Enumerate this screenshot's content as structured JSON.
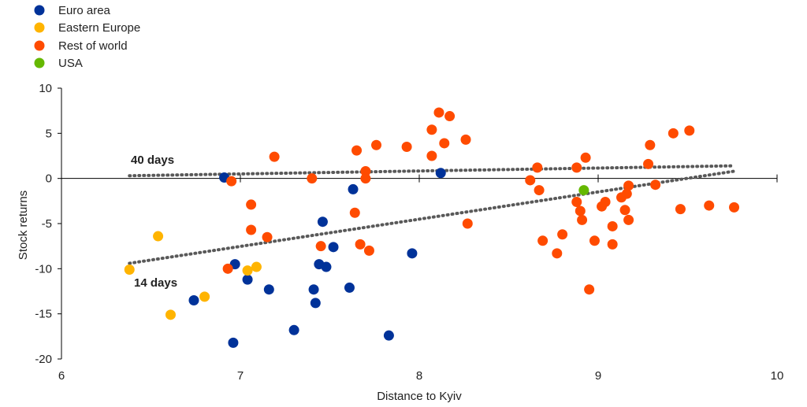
{
  "chart_data": {
    "type": "scatter",
    "xlabel": "Distance to Kyiv",
    "ylabel": "Stock returns",
    "xlim": [
      6,
      10
    ],
    "ylim": [
      -20,
      10
    ],
    "xticks": [
      6,
      7,
      8,
      9,
      10
    ],
    "yticks": [
      -20,
      -15,
      -10,
      -5,
      0,
      5,
      10
    ],
    "legend_position": "top-left",
    "series": [
      {
        "name": "Euro area",
        "color": "#003299",
        "points": [
          [
            6.91,
            0.1
          ],
          [
            6.97,
            -9.5
          ],
          [
            6.96,
            -18.2
          ],
          [
            7.04,
            -11.2
          ],
          [
            6.74,
            -13.5
          ],
          [
            7.16,
            -12.3
          ],
          [
            7.3,
            -16.8
          ],
          [
            7.41,
            -12.3
          ],
          [
            7.42,
            -13.8
          ],
          [
            7.44,
            -9.5
          ],
          [
            7.46,
            -4.8
          ],
          [
            7.48,
            -9.8
          ],
          [
            7.52,
            -7.6
          ],
          [
            7.61,
            -12.1
          ],
          [
            7.63,
            -1.2
          ],
          [
            7.83,
            -17.4
          ],
          [
            7.96,
            -8.3
          ],
          [
            8.12,
            0.6
          ]
        ]
      },
      {
        "name": "Eastern Europe",
        "color": "#FFB400",
        "points": [
          [
            6.38,
            -10.1
          ],
          [
            6.54,
            -6.4
          ],
          [
            6.61,
            -15.1
          ],
          [
            6.8,
            -13.1
          ],
          [
            7.04,
            -10.2
          ],
          [
            7.09,
            -9.8
          ]
        ]
      },
      {
        "name": "Rest of world",
        "color": "#FF4B00",
        "points": [
          [
            6.93,
            -10.0
          ],
          [
            6.95,
            -0.3
          ],
          [
            7.06,
            -2.9
          ],
          [
            7.06,
            -5.7
          ],
          [
            7.15,
            -6.5
          ],
          [
            7.19,
            2.4
          ],
          [
            7.4,
            0.0
          ],
          [
            7.45,
            -7.5
          ],
          [
            7.64,
            -3.8
          ],
          [
            7.65,
            3.1
          ],
          [
            7.67,
            -7.3
          ],
          [
            7.7,
            0.8
          ],
          [
            7.7,
            0.0
          ],
          [
            7.72,
            -8.0
          ],
          [
            7.76,
            3.7
          ],
          [
            7.93,
            3.5
          ],
          [
            8.07,
            5.4
          ],
          [
            8.07,
            2.5
          ],
          [
            8.11,
            7.3
          ],
          [
            8.14,
            3.9
          ],
          [
            8.17,
            6.9
          ],
          [
            8.26,
            4.3
          ],
          [
            8.27,
            -5.0
          ],
          [
            8.62,
            -0.2
          ],
          [
            8.66,
            1.2
          ],
          [
            8.67,
            -1.3
          ],
          [
            8.69,
            -6.9
          ],
          [
            8.77,
            -8.3
          ],
          [
            8.8,
            -6.2
          ],
          [
            8.88,
            1.2
          ],
          [
            8.88,
            -2.6
          ],
          [
            8.9,
            -3.6
          ],
          [
            8.91,
            -4.6
          ],
          [
            8.93,
            2.3
          ],
          [
            8.95,
            -12.3
          ],
          [
            8.98,
            -6.9
          ],
          [
            9.02,
            -3.1
          ],
          [
            9.04,
            -2.6
          ],
          [
            9.08,
            -5.3
          ],
          [
            9.08,
            -7.3
          ],
          [
            9.13,
            -2.1
          ],
          [
            9.15,
            -3.5
          ],
          [
            9.16,
            -1.7
          ],
          [
            9.17,
            -0.8
          ],
          [
            9.17,
            -4.6
          ],
          [
            9.28,
            1.6
          ],
          [
            9.29,
            3.7
          ],
          [
            9.32,
            -0.7
          ],
          [
            9.42,
            5.0
          ],
          [
            9.46,
            -3.4
          ],
          [
            9.51,
            5.3
          ],
          [
            9.62,
            -3.0
          ],
          [
            9.76,
            -3.2
          ]
        ]
      },
      {
        "name": "USA",
        "color": "#65B800",
        "points": [
          [
            8.92,
            -1.3
          ]
        ]
      }
    ],
    "trendlines": [
      {
        "label": "40 days",
        "from": [
          6.38,
          0.3
        ],
        "to": [
          9.76,
          1.4
        ]
      },
      {
        "label": "14 days",
        "from": [
          6.38,
          -9.4
        ],
        "to": [
          9.76,
          0.8
        ]
      }
    ]
  }
}
